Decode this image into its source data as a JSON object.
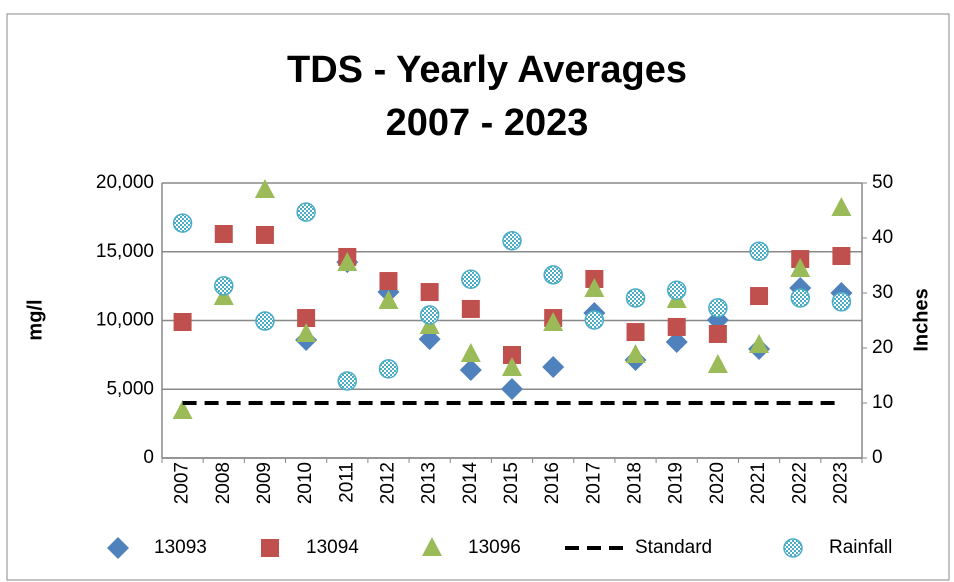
{
  "chart_data": {
    "type": "scatter",
    "title": [
      "TDS - Yearly Averages",
      "2007 - 2023"
    ],
    "ylabel": "mg/l",
    "y2label": "Inches",
    "categories": [
      "2007",
      "2008",
      "2009",
      "2010",
      "2011",
      "2012",
      "2013",
      "2014",
      "2015",
      "2016",
      "2017",
      "2018",
      "2019",
      "2020",
      "2021",
      "2022",
      "2023"
    ],
    "ylim": [
      0,
      20000
    ],
    "yticks": [
      0,
      {
        "value": 5000,
        "label": "5,000"
      },
      {
        "value": 10000,
        "label": "10,000"
      },
      {
        "value": 15000,
        "label": "15,000"
      },
      {
        "value": 20000,
        "label": "20,000"
      }
    ],
    "y2lim": [
      0,
      50
    ],
    "y2ticks": [
      0,
      10,
      20,
      30,
      40,
      50
    ],
    "grid": true,
    "legend": "bottom",
    "series": [
      {
        "name": "13093",
        "color": "#4f81bd",
        "marker": "diamond",
        "values": [
          null,
          null,
          null,
          8580,
          14250,
          12070,
          8650,
          6400,
          5020,
          6620,
          10550,
          7130,
          8440,
          10040,
          7930,
          12360,
          12000
        ]
      },
      {
        "name": "13094",
        "color": "#c0504d",
        "marker": "square",
        "values": [
          9890,
          16290,
          16220,
          10180,
          14620,
          12870,
          12070,
          10840,
          7490,
          10180,
          13020,
          9160,
          9530,
          9020,
          11780,
          14470,
          14690
        ]
      },
      {
        "name": "13096",
        "color": "#9bbb59",
        "marker": "triangle",
        "values": [
          3420,
          11710,
          19490,
          9020,
          14180,
          11420,
          9600,
          7560,
          6550,
          9820,
          12290,
          7490,
          11490,
          6760,
          8220,
          13750,
          18180
        ]
      },
      {
        "name": "Standard",
        "color": "#000000",
        "marker": "dash",
        "values": [
          4000,
          4000,
          4000,
          4000,
          4000,
          4000,
          4000,
          4000,
          4000,
          4000,
          4000,
          4000,
          4000,
          4000,
          4000,
          4000,
          4000
        ]
      },
      {
        "name": "Rainfall",
        "color": "#4bacc6",
        "marker": "hatched-circle",
        "axis": "y2",
        "values": [
          42.7,
          31.3,
          24.9,
          44.7,
          14.0,
          16.2,
          26.0,
          32.5,
          39.5,
          33.3,
          25.1,
          29.1,
          30.5,
          27.3,
          37.6,
          29.1,
          28.4
        ]
      }
    ]
  }
}
